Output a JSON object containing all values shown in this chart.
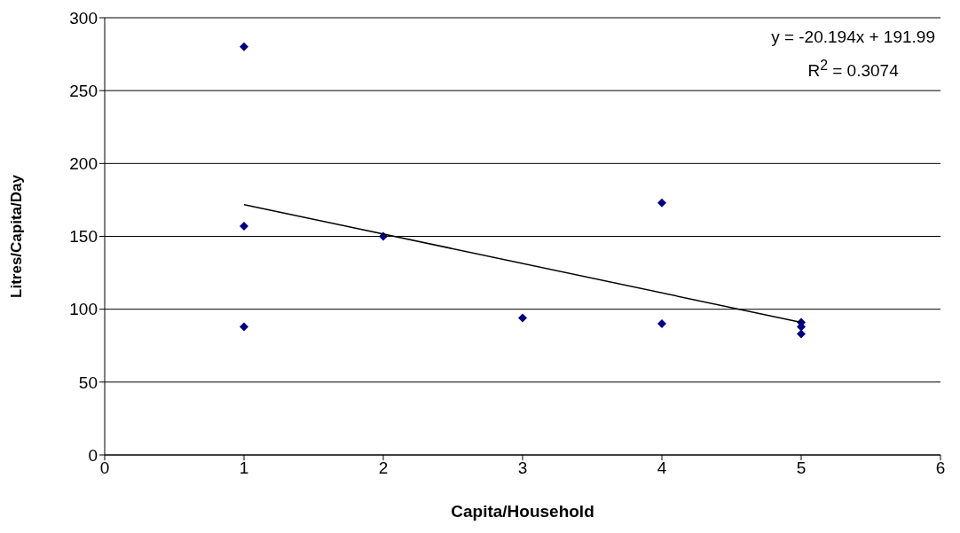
{
  "chart_data": {
    "type": "scatter",
    "xlabel": "Capita/Household",
    "ylabel": "Litres/Capita/Day",
    "xlim": [
      0,
      6
    ],
    "xticks": [
      0,
      1,
      2,
      3,
      4,
      5,
      6
    ],
    "ylim": [
      0,
      300
    ],
    "yticks": [
      0,
      50,
      100,
      150,
      200,
      250,
      300
    ],
    "grid": "y",
    "marker": "diamond",
    "annotations": [
      "y = -20.194x + 191.99",
      "R$^{2}$ = 0.3074"
    ],
    "series": [
      {
        "color": "#000080",
        "x": [
          1,
          1,
          1,
          2,
          3,
          4,
          4,
          5,
          5,
          5
        ],
        "values": [
          280,
          157,
          88,
          150,
          94,
          173,
          90,
          91,
          88,
          83
        ]
      },
      {
        "type": "line",
        "color": "#000000",
        "marker": "none",
        "x": [
          1,
          5
        ],
        "values": [
          171.8,
          91.0
        ]
      }
    ]
  }
}
